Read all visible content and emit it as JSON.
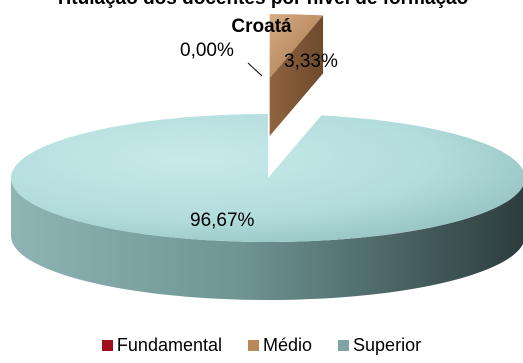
{
  "chart_data": {
    "type": "pie",
    "style": "3d-exploded",
    "title_lines": [
      "Titulação dos docentes por nível de formação",
      "Croatá"
    ],
    "slices": [
      {
        "name": "Fundamental",
        "value": 0.0,
        "label": "0,00%",
        "color": "#a0101a"
      },
      {
        "name": "Médio",
        "value": 3.33,
        "label": "3,33%",
        "color": "#b8875a"
      },
      {
        "name": "Superior",
        "value": 96.67,
        "label": "96,67%",
        "color": "#a9d4d4"
      }
    ],
    "legend": {
      "placement": "bottom",
      "entries": [
        "Fundamental",
        "Médio",
        "Superior"
      ]
    }
  }
}
